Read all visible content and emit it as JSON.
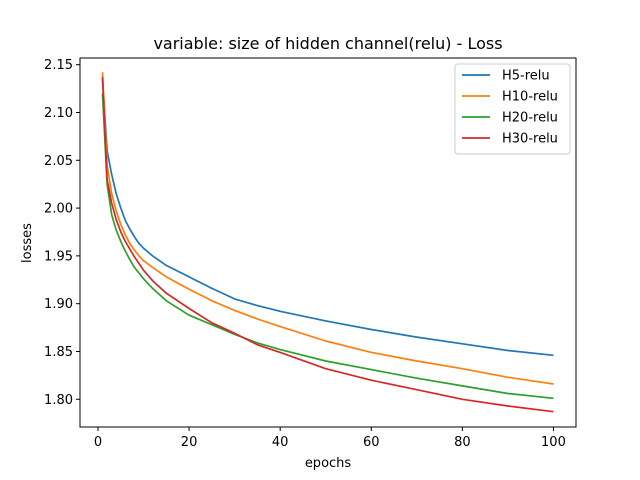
{
  "chart_data": {
    "type": "line",
    "title": "variable: size of hidden channel(relu) - Loss",
    "xlabel": "epochs",
    "ylabel": "losses",
    "xlim": [
      -3.95,
      104.95
    ],
    "ylim": [
      1.771,
      2.157
    ],
    "xticks": [
      0,
      20,
      40,
      60,
      80,
      100
    ],
    "yticks": [
      1.8,
      1.85,
      1.9,
      1.95,
      2.0,
      2.05,
      2.1,
      2.15
    ],
    "ytick_labels": [
      "1.80",
      "1.85",
      "1.90",
      "1.95",
      "2.00",
      "2.05",
      "2.10",
      "2.15"
    ],
    "grid": false,
    "legend_position": "top-right",
    "series": [
      {
        "name": "H5-relu",
        "color": "#1f77b4",
        "x": [
          1,
          2,
          3,
          4,
          5,
          6,
          7,
          8,
          9,
          10,
          12,
          15,
          20,
          25,
          30,
          35,
          40,
          50,
          60,
          70,
          80,
          90,
          100
        ],
        "y": [
          2.135,
          2.06,
          2.035,
          2.015,
          2.0,
          1.987,
          1.978,
          1.97,
          1.963,
          1.958,
          1.95,
          1.94,
          1.928,
          1.916,
          1.905,
          1.898,
          1.892,
          1.882,
          1.873,
          1.865,
          1.858,
          1.851,
          1.846
        ]
      },
      {
        "name": "H10-relu",
        "color": "#ff7f0e",
        "x": [
          1,
          2,
          3,
          4,
          5,
          6,
          7,
          8,
          9,
          10,
          12,
          15,
          20,
          25,
          30,
          35,
          40,
          50,
          60,
          70,
          80,
          90,
          100
        ],
        "y": [
          2.142,
          2.045,
          2.015,
          1.997,
          1.983,
          1.972,
          1.963,
          1.956,
          1.95,
          1.945,
          1.938,
          1.928,
          1.915,
          1.903,
          1.893,
          1.884,
          1.876,
          1.861,
          1.849,
          1.84,
          1.832,
          1.823,
          1.816
        ]
      },
      {
        "name": "H20-relu",
        "color": "#2ca02c",
        "x": [
          1,
          2,
          3,
          4,
          5,
          6,
          7,
          8,
          9,
          10,
          12,
          15,
          20,
          25,
          30,
          35,
          40,
          50,
          60,
          70,
          80,
          90,
          100
        ],
        "y": [
          2.12,
          2.025,
          1.993,
          1.977,
          1.965,
          1.955,
          1.946,
          1.938,
          1.932,
          1.926,
          1.916,
          1.903,
          1.888,
          1.878,
          1.868,
          1.859,
          1.852,
          1.84,
          1.831,
          1.822,
          1.814,
          1.806,
          1.801
        ]
      },
      {
        "name": "H30-relu",
        "color": "#d62728",
        "x": [
          1,
          2,
          3,
          4,
          5,
          6,
          7,
          8,
          9,
          10,
          12,
          15,
          20,
          25,
          30,
          35,
          40,
          50,
          60,
          70,
          80,
          90,
          100
        ],
        "y": [
          2.137,
          2.03,
          2.005,
          1.988,
          1.975,
          1.965,
          1.957,
          1.949,
          1.942,
          1.935,
          1.924,
          1.911,
          1.895,
          1.88,
          1.869,
          1.857,
          1.849,
          1.832,
          1.82,
          1.81,
          1.8,
          1.793,
          1.787
        ]
      }
    ]
  }
}
